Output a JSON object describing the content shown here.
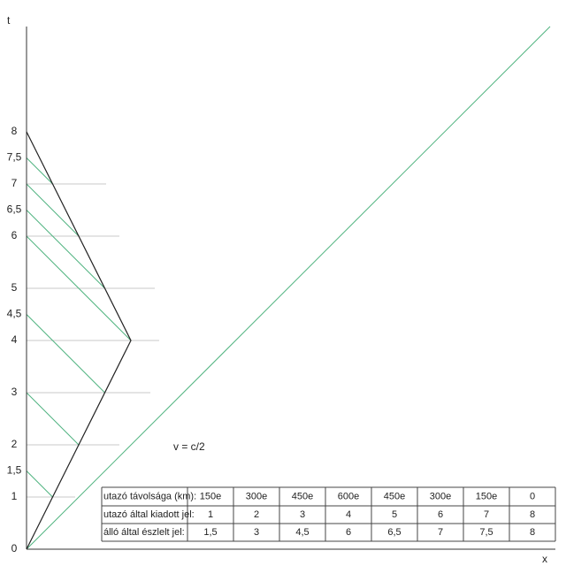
{
  "axes": {
    "y_label": "t",
    "x_label": "x",
    "yticks": [
      0,
      1,
      {
        "value": 1.5,
        "label": "1,5"
      },
      2,
      3,
      4,
      {
        "value": 4.5,
        "label": "4,5"
      },
      5,
      6,
      {
        "value": 6.5,
        "label": "6,5"
      },
      7,
      {
        "value": 7.5,
        "label": "7,5"
      },
      8
    ]
  },
  "annotation": "v = c/2",
  "table": {
    "rows": [
      [
        "utazó távolsága (km):",
        "150e",
        "300e",
        "450e",
        "600e",
        "450e",
        "300e",
        "150e",
        "0"
      ],
      [
        "utazó által kiadott jel:",
        "1",
        "2",
        "3",
        "4",
        "5",
        "6",
        "7",
        "8"
      ],
      [
        "álló által észlelt jel:",
        "1,5",
        "3",
        "4,5",
        "6",
        "6,5",
        "7",
        "7,5",
        "8"
      ]
    ]
  }
}
